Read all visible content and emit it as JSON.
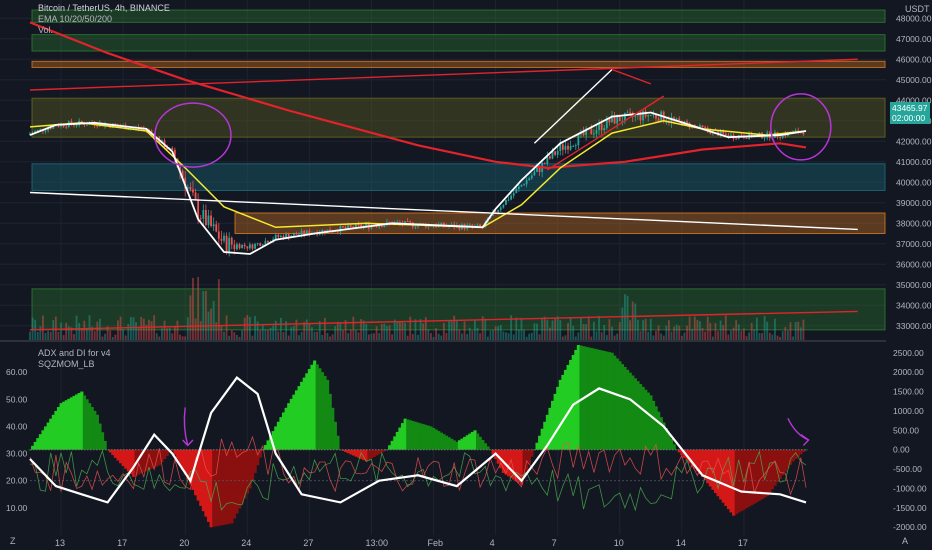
{
  "header": {
    "symbol": "Bitcoin / TetherUS, 4h, BINANCE",
    "indicator_ema": "EMA 10/20/50/200",
    "indicator_vol": "Vol.",
    "currency": "USDT"
  },
  "lower_pane": {
    "indicator_adx": "ADX and DI for v4",
    "indicator_sqz": "SQZMOM_LB"
  },
  "price_tag": {
    "price": "43465.97",
    "countdown": "02:00:00"
  },
  "bottom_left_label": "Z",
  "bottom_right_label": "A",
  "colors": {
    "background": "#131722",
    "bull_candle": "#26a69a",
    "bear_candle": "#ef5350",
    "ema_white": "#ffffff",
    "ema_yellow": "#f5e92e",
    "ema_red": "#e3232b",
    "zone_green": "#2e7d32",
    "zone_orange": "#e07b1f",
    "zone_teal": "#1b6f80",
    "zone_olive": "#6b6a1e",
    "momentum_green": "#1fbf1f",
    "momentum_red": "#c41515",
    "annotation_purple": "#b536d6"
  },
  "chart_data": [
    {
      "type": "candlestick",
      "title": "Bitcoin / TetherUS, 4h, BINANCE",
      "y_unit": "USDT",
      "ylim": [
        32500,
        48500
      ],
      "y_ticks": [
        "48000.00",
        "47000.00",
        "46000.00",
        "45000.00",
        "44000.00",
        "43000.00",
        "42000.00",
        "41000.00",
        "40000.00",
        "39000.00",
        "38000.00",
        "37000.00",
        "36000.00",
        "35000.00",
        "34000.00",
        "33000.00"
      ],
      "x_ticks": [
        "13",
        "17",
        "20",
        "24",
        "27",
        "13:00",
        "Feb",
        "4",
        "7",
        "10",
        "14",
        "17"
      ],
      "ema_200": [
        [
          0,
          47800
        ],
        [
          30,
          46300
        ],
        [
          60,
          45000
        ],
        [
          100,
          43500
        ],
        [
          150,
          41800
        ],
        [
          180,
          41000
        ],
        [
          200,
          40700
        ],
        [
          230,
          41000
        ],
        [
          260,
          41600
        ],
        [
          290,
          41900
        ],
        [
          300,
          41700
        ]
      ],
      "ema_fast": [
        [
          0,
          42300
        ],
        [
          10,
          42800
        ],
        [
          25,
          42900
        ],
        [
          45,
          42600
        ],
        [
          55,
          41500
        ],
        [
          65,
          38200
        ],
        [
          75,
          36600
        ],
        [
          85,
          36500
        ],
        [
          95,
          37200
        ],
        [
          110,
          37500
        ],
        [
          140,
          38000
        ],
        [
          175,
          37800
        ],
        [
          180,
          38700
        ],
        [
          190,
          40100
        ],
        [
          205,
          41900
        ],
        [
          225,
          43200
        ],
        [
          240,
          43400
        ],
        [
          255,
          42800
        ],
        [
          270,
          42200
        ],
        [
          290,
          42300
        ],
        [
          300,
          42500
        ]
      ],
      "ema_mid": [
        [
          0,
          42700
        ],
        [
          20,
          42900
        ],
        [
          45,
          42500
        ],
        [
          60,
          40700
        ],
        [
          75,
          38800
        ],
        [
          95,
          37800
        ],
        [
          130,
          38000
        ],
        [
          175,
          37800
        ],
        [
          190,
          38900
        ],
        [
          205,
          40700
        ],
        [
          225,
          42400
        ],
        [
          245,
          43000
        ],
        [
          260,
          42600
        ],
        [
          285,
          42300
        ],
        [
          300,
          42500
        ]
      ],
      "trendlines": [
        {
          "from": [
            0,
            44500
          ],
          "to": [
            320,
            46000
          ]
        },
        {
          "from": [
            0,
            39500
          ],
          "to": [
            320,
            37700
          ]
        },
        {
          "from": [
            0,
            32800
          ],
          "to": [
            320,
            33700
          ]
        },
        {
          "from": [
            195,
            41900
          ],
          "to": [
            225,
            45500
          ]
        },
        {
          "from": [
            225,
            45500
          ],
          "to": [
            240,
            44800
          ]
        },
        {
          "from": [
            200,
            40600
          ],
          "to": [
            245,
            44200
          ]
        }
      ],
      "zones": [
        {
          "low": 47800,
          "high": 48400,
          "color": "zone_green"
        },
        {
          "low": 46400,
          "high": 47200,
          "color": "zone_green"
        },
        {
          "low": 45600,
          "high": 45900,
          "color": "zone_orange"
        },
        {
          "low": 42200,
          "high": 44100,
          "color": "zone_olive"
        },
        {
          "low": 39600,
          "high": 40900,
          "color": "zone_teal"
        },
        {
          "low": 37500,
          "high": 38500,
          "color": "zone_orange"
        },
        {
          "low": 32800,
          "high": 34800,
          "color": "zone_green"
        }
      ]
    },
    {
      "type": "area",
      "title": "ADX and DI for v4",
      "ylim_left": [
        0,
        70
      ],
      "ylim_right": [
        -2200,
        2700
      ],
      "y_ticks_left": [
        "60.00",
        "50.00",
        "40.00",
        "30.00",
        "20.00",
        "10.00"
      ],
      "y_ticks_right": [
        "2500.00",
        "2000.00",
        "1500.00",
        "1000.00",
        "500.00",
        "0.00",
        "-500.00",
        "-1000.00",
        "-1500.00",
        "-2000.00"
      ],
      "series": [
        {
          "name": "SQZMOM_LB",
          "values": [
            [
              0,
              0
            ],
            [
              5,
              500
            ],
            [
              12,
              1200
            ],
            [
              20,
              1500
            ],
            [
              26,
              900
            ],
            [
              30,
              0
            ],
            [
              40,
              -700
            ],
            [
              50,
              -400
            ],
            [
              55,
              0
            ],
            [
              62,
              -900
            ],
            [
              70,
              -2000
            ],
            [
              78,
              -1900
            ],
            [
              85,
              -1000
            ],
            [
              90,
              0
            ],
            [
              100,
              1200
            ],
            [
              110,
              2300
            ],
            [
              115,
              1800
            ],
            [
              120,
              0
            ],
            [
              130,
              -300
            ],
            [
              138,
              0
            ],
            [
              145,
              800
            ],
            [
              155,
              600
            ],
            [
              165,
              200
            ],
            [
              172,
              500
            ],
            [
              178,
              0
            ],
            [
              183,
              -600
            ],
            [
              190,
              -900
            ],
            [
              195,
              0
            ],
            [
              205,
              1800
            ],
            [
              212,
              2700
            ],
            [
              225,
              2500
            ],
            [
              240,
              1400
            ],
            [
              250,
              0
            ],
            [
              260,
              -700
            ],
            [
              272,
              -1700
            ],
            [
              285,
              -1200
            ],
            [
              295,
              -300
            ],
            [
              300,
              0
            ]
          ]
        },
        {
          "name": "ADX",
          "values": [
            [
              0,
              28
            ],
            [
              10,
              18
            ],
            [
              20,
              15
            ],
            [
              30,
              12
            ],
            [
              40,
              25
            ],
            [
              48,
              37
            ],
            [
              55,
              30
            ],
            [
              62,
              20
            ],
            [
              70,
              45
            ],
            [
              80,
              58
            ],
            [
              88,
              52
            ],
            [
              95,
              30
            ],
            [
              105,
              15
            ],
            [
              120,
              12
            ],
            [
              135,
              20
            ],
            [
              150,
              22
            ],
            [
              165,
              18
            ],
            [
              180,
              30
            ],
            [
              190,
              20
            ],
            [
              200,
              33
            ],
            [
              210,
              48
            ],
            [
              220,
              54
            ],
            [
              232,
              50
            ],
            [
              245,
              40
            ],
            [
              260,
              22
            ],
            [
              275,
              16
            ],
            [
              290,
              15
            ],
            [
              300,
              12
            ]
          ]
        }
      ]
    }
  ]
}
